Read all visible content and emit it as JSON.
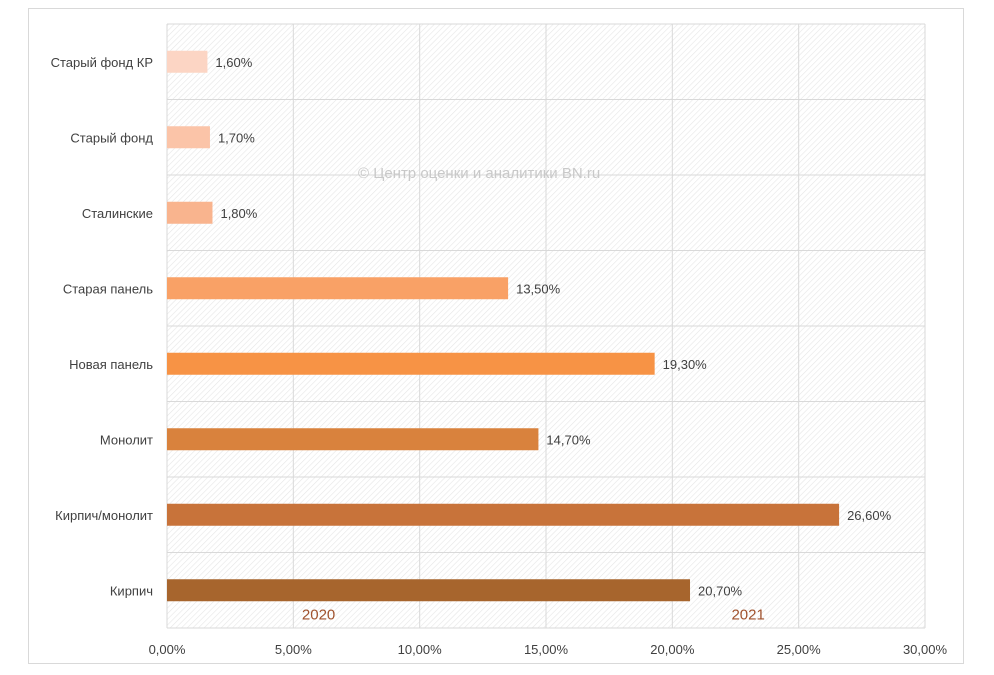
{
  "chart_data": {
    "type": "bar",
    "orientation": "horizontal",
    "categories": [
      "Старый фонд КР",
      "Старый фонд",
      "Сталинские",
      "Старая панель",
      "Новая панель",
      "Монолит",
      "Кирпич/монолит",
      "Кирпич"
    ],
    "values": [
      1.6,
      1.7,
      1.8,
      13.5,
      19.3,
      14.7,
      26.6,
      20.7
    ],
    "value_labels": [
      "1,60%",
      "1,70%",
      "1,80%",
      "13,50%",
      "19,30%",
      "14,70%",
      "26,60%",
      "20,70%"
    ],
    "bar_colors": [
      "#fcd5c4",
      "#fbc4a8",
      "#f9b48e",
      "#f9a166",
      "#f79345",
      "#d9823d",
      "#c8733a",
      "#a7652d"
    ],
    "xlim": [
      0,
      30
    ],
    "x_ticks": [
      0,
      5,
      10,
      15,
      20,
      25,
      30
    ],
    "x_tick_labels": [
      "0,00%",
      "5,00%",
      "10,00%",
      "15,00%",
      "20,00%",
      "25,00%",
      "30,00%"
    ],
    "grid": true,
    "background_pattern": "diagonal-hatch",
    "annotations": [
      {
        "text": "2020",
        "x": 6.0,
        "category_index": 7
      },
      {
        "text": "2021",
        "x": 23.0,
        "category_index": 7
      }
    ],
    "watermark": "© Центр оценки и аналитики BN.ru",
    "title": "",
    "xlabel": "",
    "ylabel": ""
  },
  "colors": {
    "grid": "#d9d9d9",
    "hatch": "#e6e6e6",
    "text": "#404040",
    "annotation": "#a0522d",
    "watermark": "#c9c9c9"
  }
}
